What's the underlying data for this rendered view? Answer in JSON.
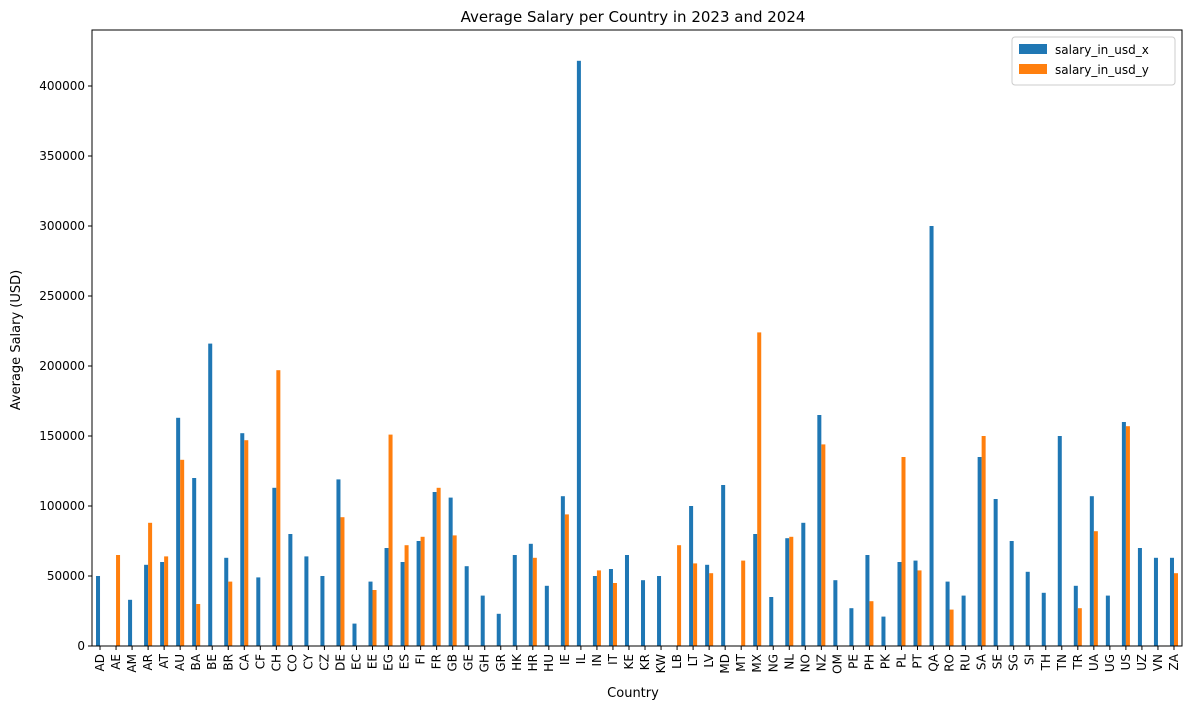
{
  "chart_data": {
    "type": "bar",
    "title": "Average Salary per Country in 2023 and 2024",
    "xlabel": "Country",
    "ylabel": "Average Salary (USD)",
    "ylim": [
      0,
      440000
    ],
    "yticks": [
      0,
      50000,
      100000,
      150000,
      200000,
      250000,
      300000,
      350000,
      400000
    ],
    "ytick_labels": [
      "0",
      "50000",
      "100000",
      "150000",
      "200000",
      "250000",
      "300000",
      "350000",
      "400000"
    ],
    "grid": false,
    "legend_position": "top-right",
    "categories": [
      "AD",
      "AE",
      "AM",
      "AR",
      "AT",
      "AU",
      "BA",
      "BE",
      "BR",
      "CA",
      "CF",
      "CH",
      "CO",
      "CY",
      "CZ",
      "DE",
      "EC",
      "EE",
      "EG",
      "ES",
      "FI",
      "FR",
      "GB",
      "GE",
      "GH",
      "GR",
      "HK",
      "HR",
      "HU",
      "IE",
      "IL",
      "IN",
      "IT",
      "KE",
      "KR",
      "KW",
      "LB",
      "LT",
      "LV",
      "MD",
      "MT",
      "MX",
      "NG",
      "NL",
      "NO",
      "NZ",
      "OM",
      "PE",
      "PH",
      "PK",
      "PL",
      "PT",
      "QA",
      "RO",
      "RU",
      "SA",
      "SE",
      "SG",
      "SI",
      "TH",
      "TN",
      "TR",
      "UA",
      "UG",
      "US",
      "UZ",
      "VN",
      "ZA"
    ],
    "series": [
      {
        "name": "salary_in_usd_x",
        "color": "#1f77b4",
        "values": [
          50000,
          null,
          33000,
          58000,
          60000,
          163000,
          120000,
          216000,
          63000,
          152000,
          49000,
          113000,
          80000,
          64000,
          50000,
          119000,
          16000,
          46000,
          70000,
          60000,
          75000,
          110000,
          106000,
          57000,
          36000,
          23000,
          65000,
          73000,
          43000,
          107000,
          418000,
          50000,
          55000,
          65000,
          47000,
          50000,
          null,
          100000,
          58000,
          115000,
          null,
          80000,
          35000,
          77000,
          88000,
          165000,
          47000,
          27000,
          65000,
          21000,
          60000,
          61000,
          300000,
          46000,
          36000,
          135000,
          105000,
          75000,
          53000,
          38000,
          150000,
          43000,
          107000,
          36000,
          160000,
          70000,
          63000,
          63000
        ]
      },
      {
        "name": "salary_in_usd_y",
        "color": "#ff7f0e",
        "values": [
          null,
          65000,
          null,
          88000,
          64000,
          133000,
          30000,
          null,
          46000,
          147000,
          null,
          197000,
          null,
          null,
          null,
          92000,
          null,
          40000,
          151000,
          72000,
          78000,
          113000,
          79000,
          null,
          null,
          null,
          null,
          63000,
          null,
          94000,
          null,
          54000,
          45000,
          null,
          null,
          null,
          72000,
          59000,
          52000,
          null,
          61000,
          224000,
          null,
          78000,
          null,
          144000,
          null,
          null,
          32000,
          null,
          135000,
          54000,
          null,
          26000,
          null,
          150000,
          null,
          null,
          null,
          null,
          null,
          27000,
          82000,
          null,
          157000,
          null,
          null,
          52000
        ]
      }
    ]
  }
}
